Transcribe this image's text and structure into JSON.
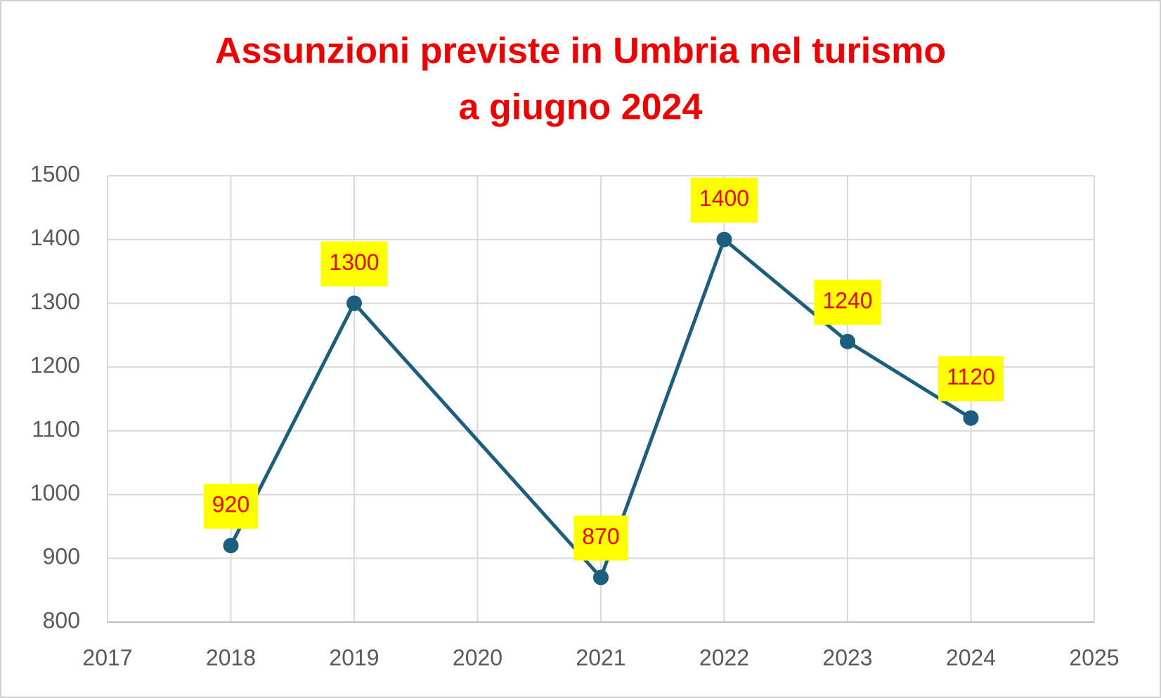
{
  "chart_data": {
    "type": "line",
    "title": [
      "Assunzioni previste in Umbria nel turismo",
      "a giugno 2024"
    ],
    "x": [
      2018,
      2019,
      2021,
      2022,
      2023,
      2024
    ],
    "series": [
      {
        "name": "Assunzioni",
        "color": "#1b5e7e",
        "values": [
          920,
          1300,
          870,
          1400,
          1240,
          1120
        ]
      }
    ],
    "xlim": [
      2017,
      2025
    ],
    "xticks": [
      2017,
      2018,
      2019,
      2020,
      2021,
      2022,
      2023,
      2024,
      2025
    ],
    "ylim": [
      800,
      1500
    ],
    "yticks": [
      800,
      900,
      1000,
      1100,
      1200,
      1300,
      1400,
      1500
    ],
    "grid": true,
    "title_color": "#ee0000",
    "label_color": "#ee0000",
    "label_background": "#ffff00"
  }
}
